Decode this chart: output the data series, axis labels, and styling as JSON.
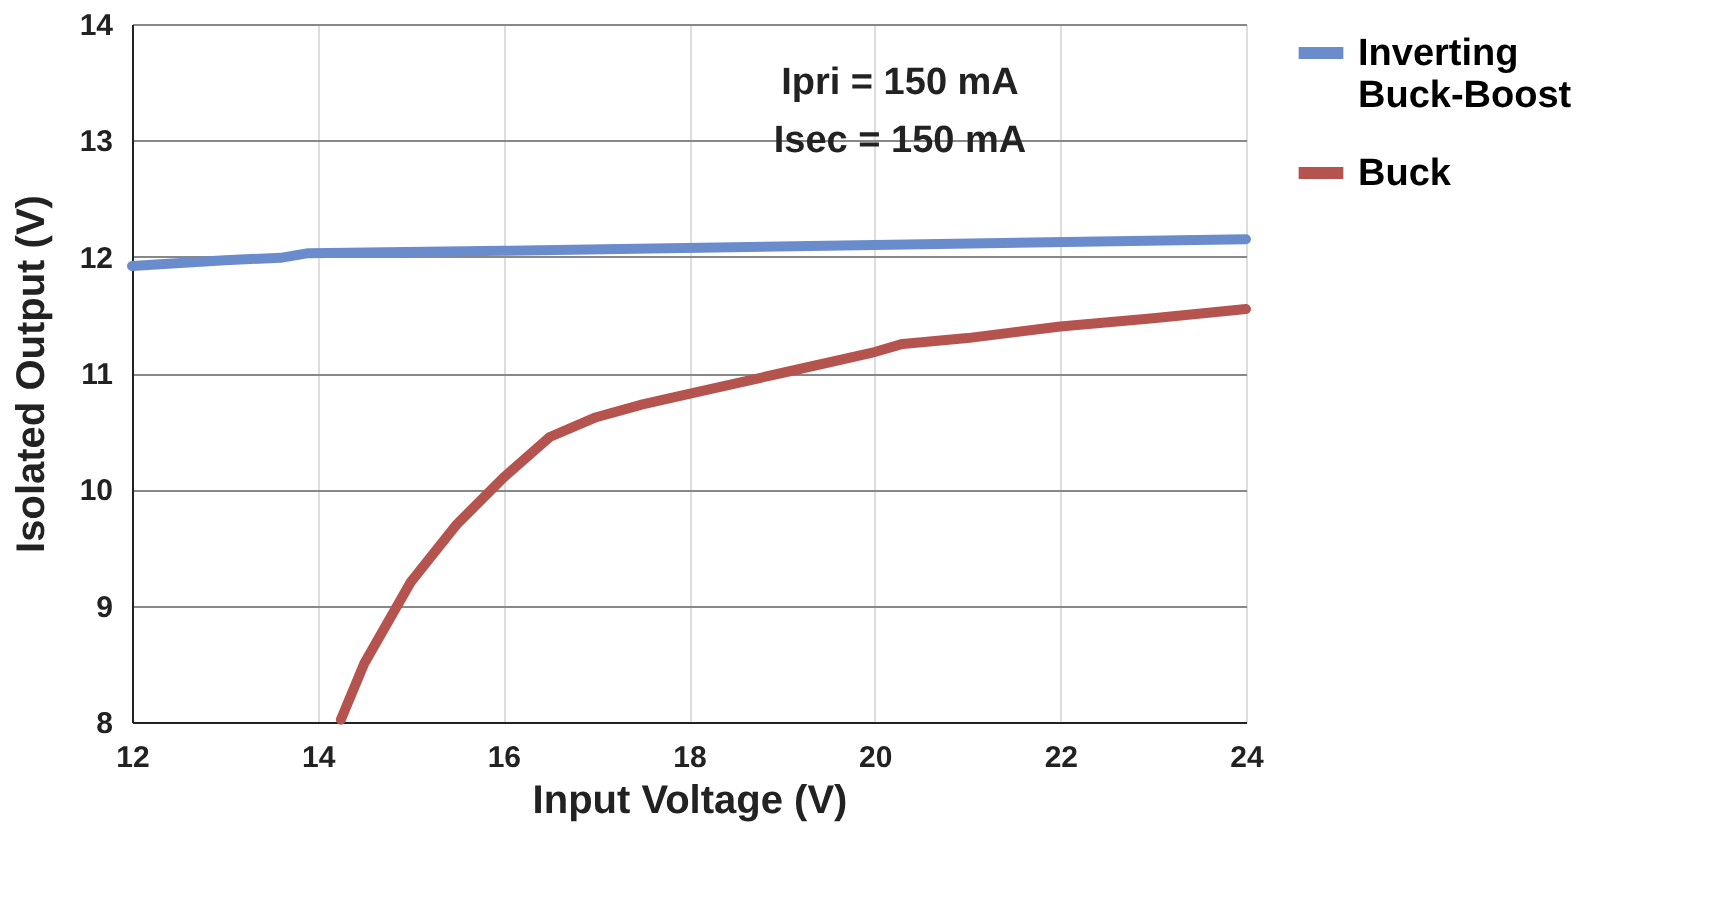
{
  "chart_data": {
    "type": "line",
    "xlabel": "Input Voltage (V)",
    "ylabel": "Isolated Output (V)",
    "annotations": [
      "Ipri = 150 mA",
      "Isec = 150 mA"
    ],
    "xlim": [
      12,
      24
    ],
    "xticks": [
      12,
      14,
      16,
      18,
      20,
      22,
      24
    ],
    "ylim": [
      8,
      14
    ],
    "yticks": [
      8,
      9,
      10,
      11,
      12,
      13,
      14
    ],
    "grid": true,
    "legend": "top right",
    "line_style": "solid",
    "marker": "none",
    "series": [
      {
        "name": "Inverting Buck-Boost",
        "color": "#6b8ccc",
        "x": [
          12,
          13,
          13.6,
          13.9,
          16,
          20,
          24
        ],
        "values": [
          11.92,
          11.97,
          11.99,
          12.03,
          12.05,
          12.1,
          12.15
        ]
      },
      {
        "name": "Buck",
        "color": "#b5544e",
        "x": [
          14.25,
          14.5,
          15,
          15.5,
          16,
          16.5,
          17,
          17.5,
          18,
          19,
          20,
          20.3,
          21,
          22,
          23,
          24
        ],
        "values": [
          8.02,
          8.5,
          9.2,
          9.7,
          10.1,
          10.45,
          10.62,
          10.73,
          10.82,
          11.0,
          11.18,
          11.25,
          11.3,
          11.4,
          11.47,
          11.55
        ]
      }
    ]
  }
}
